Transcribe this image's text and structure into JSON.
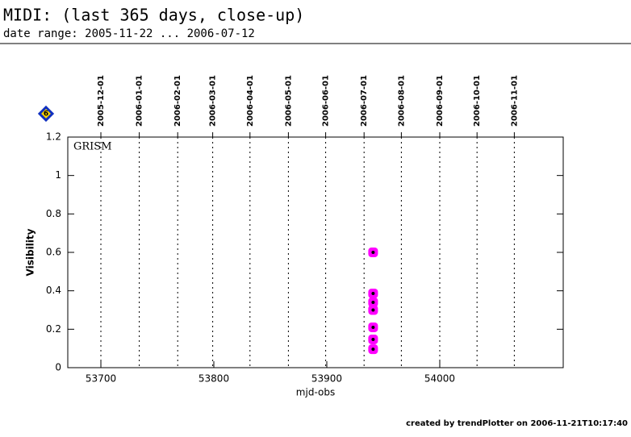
{
  "chart_data": {
    "type": "scatter",
    "title": "MIDI: (last 365 days, close-up)",
    "subtitle": "date range: 2005-11-22 ... 2006-07-12",
    "annotation": "GRISM",
    "badge": "6",
    "x_label": "mjd-obs",
    "y_label": "Visibility",
    "footer": "created by trendPlotter on 2006-11-21T10:17:40",
    "xlim": [
      53670.7,
      54109.3
    ],
    "xticks": [
      53700,
      53800,
      53900,
      54000
    ],
    "ylim": [
      0,
      1.2
    ],
    "yticks": [
      0,
      0.2,
      0.4,
      0.6,
      0.8,
      1,
      1.2
    ],
    "date_markers": [
      {
        "value": 53700,
        "label": "2005-12-01"
      },
      {
        "value": 53734,
        "label": "2006-01-01"
      },
      {
        "value": 53768,
        "label": "2006-02-01"
      },
      {
        "value": 53799,
        "label": "2006-03-01"
      },
      {
        "value": 53832,
        "label": "2006-04-01"
      },
      {
        "value": 53866,
        "label": "2006-05-01"
      },
      {
        "value": 53899,
        "label": "2006-06-01"
      },
      {
        "value": 53933,
        "label": "2006-07-01"
      },
      {
        "value": 53966,
        "label": "2006-08-01"
      },
      {
        "value": 54000,
        "label": "2006-09-01"
      },
      {
        "value": 54033,
        "label": "2006-10-01"
      },
      {
        "value": 54066,
        "label": "2006-11-01"
      }
    ],
    "color": "#ff00ff",
    "x": [
      53941,
      53941,
      53941,
      53941,
      53941,
      53941,
      53941
    ],
    "values": [
      0.6,
      0.386,
      0.34,
      0.3,
      0.21,
      0.147,
      0.096
    ]
  }
}
